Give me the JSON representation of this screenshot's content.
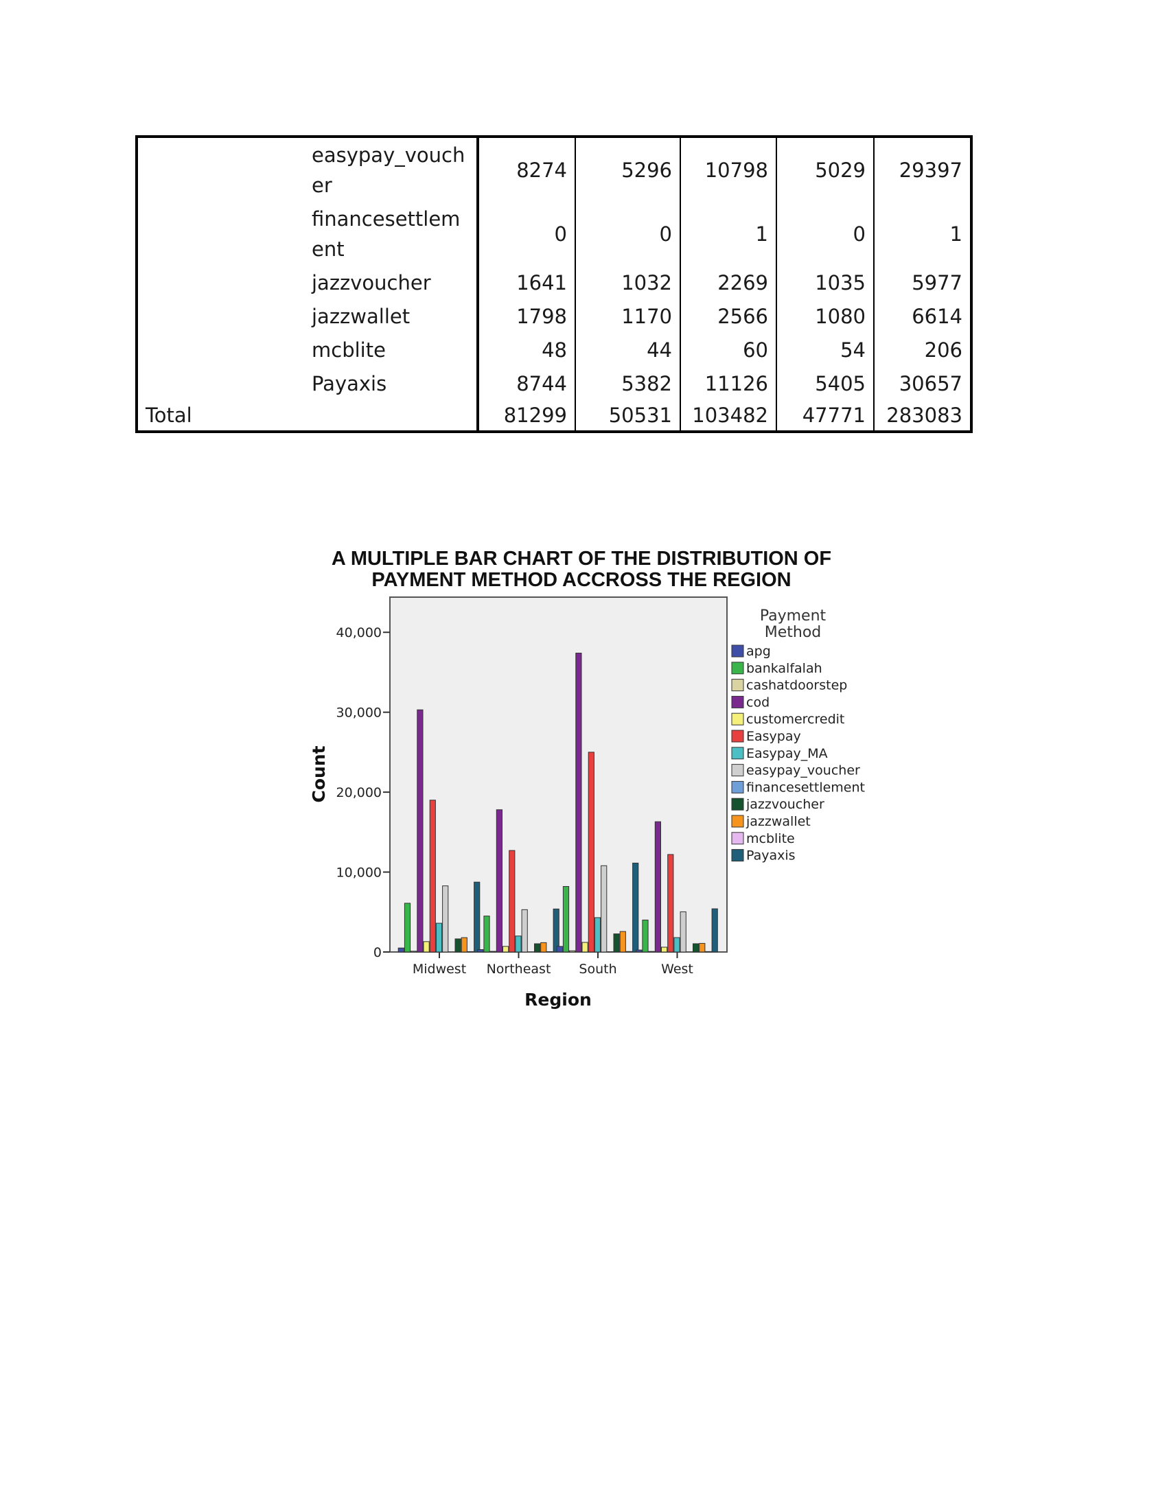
{
  "table": {
    "rows": [
      {
        "label": "easypay_voucher",
        "values": [
          "8274",
          "5296",
          "10798",
          "5029",
          "29397"
        ]
      },
      {
        "label": "financesettlement",
        "values": [
          "0",
          "0",
          "1",
          "0",
          "1"
        ]
      },
      {
        "label": "jazzvoucher",
        "values": [
          "1641",
          "1032",
          "2269",
          "1035",
          "5977"
        ]
      },
      {
        "label": "jazzwallet",
        "values": [
          "1798",
          "1170",
          "2566",
          "1080",
          "6614"
        ]
      },
      {
        "label": "mcblite",
        "values": [
          "48",
          "44",
          "60",
          "54",
          "206"
        ]
      },
      {
        "label": "Payaxis",
        "values": [
          "8744",
          "5382",
          "11126",
          "5405",
          "30657"
        ]
      }
    ],
    "total": {
      "label": "Total",
      "values": [
        "81299",
        "50531",
        "103482",
        "47771",
        "283083"
      ]
    }
  },
  "chart_data": {
    "type": "bar",
    "title": "A MULTIPLE BAR CHART OF THE DISTRIBUTION OF PAYMENT METHOD ACCROSS THE REGION",
    "title_lines": [
      "A MULTIPLE BAR CHART OF THE DISTRIBUTION OF",
      "PAYMENT METHOD ACCROSS THE REGION"
    ],
    "xlabel": "Region",
    "ylabel": "Count",
    "ylim": [
      0,
      44400
    ],
    "yticks": [
      0,
      10000,
      20000,
      30000,
      40000
    ],
    "ytick_labels": [
      "0",
      "10,000",
      "20,000",
      "30,000",
      "40,000"
    ],
    "categories": [
      "Midwest",
      "Northeast",
      "South",
      "West"
    ],
    "legend_title_lines": [
      "Payment",
      "Method"
    ],
    "legend_position": "right",
    "grid": false,
    "background": "#efefef",
    "series": [
      {
        "name": "apg",
        "color": "#3f4fa8",
        "values": [
          500,
          300,
          700,
          250
        ]
      },
      {
        "name": "bankalfalah",
        "color": "#39b54a",
        "values": [
          6100,
          4500,
          8200,
          4000
        ]
      },
      {
        "name": "cashatdoorstep",
        "color": "#d9d4a1",
        "values": [
          100,
          80,
          150,
          70
        ]
      },
      {
        "name": "cod",
        "color": "#7a2a8f",
        "values": [
          30300,
          17800,
          37400,
          16300
        ]
      },
      {
        "name": "customercredit",
        "color": "#f5f07a",
        "values": [
          1300,
          700,
          1200,
          600
        ]
      },
      {
        "name": "Easypay",
        "color": "#e8403e",
        "values": [
          19000,
          12700,
          25000,
          12200
        ]
      },
      {
        "name": "Easypay_MA",
        "color": "#4bbfc4",
        "values": [
          3600,
          2000,
          4300,
          1800
        ]
      },
      {
        "name": "easypay_voucher",
        "color": "#cfcfcf",
        "values": [
          8274,
          5296,
          10798,
          5029
        ]
      },
      {
        "name": "financesettlement",
        "color": "#6f9fd8",
        "values": [
          0,
          0,
          1,
          0
        ]
      },
      {
        "name": "jazzvoucher",
        "color": "#14532d",
        "values": [
          1641,
          1032,
          2269,
          1035
        ]
      },
      {
        "name": "jazzwallet",
        "color": "#f7941d",
        "values": [
          1798,
          1170,
          2566,
          1080
        ]
      },
      {
        "name": "mcblite",
        "color": "#e6b8f0",
        "values": [
          48,
          44,
          60,
          54
        ]
      },
      {
        "name": "Payaxis",
        "color": "#1f5f7a",
        "values": [
          8744,
          5382,
          11126,
          5405
        ]
      }
    ]
  }
}
